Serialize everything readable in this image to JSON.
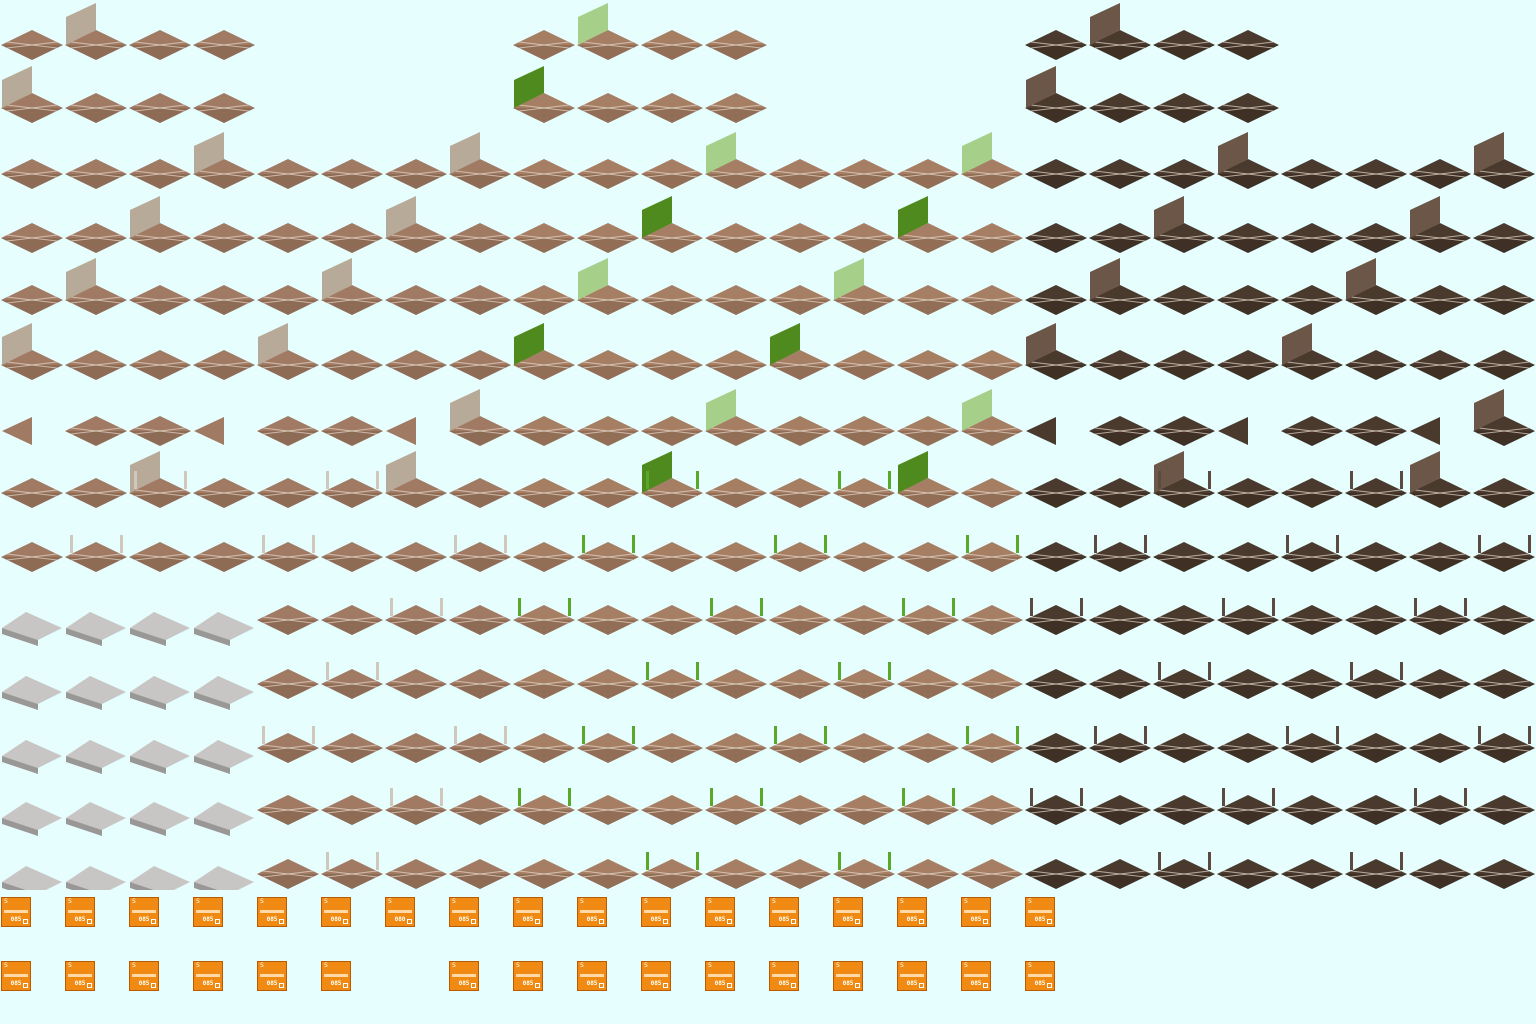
{
  "sheet": {
    "background": "#e6fefe",
    "panels": [
      {
        "name": "plain",
        "ground": "#a07a62",
        "groundDark": "#6e4f3c",
        "wall": "#b8aa98",
        "post": "#d0c8bc"
      },
      {
        "name": "grass",
        "ground": "#a57e63",
        "groundDark": "#6e4f3c",
        "wall": "#4e8a1e",
        "wallLight": "#a6cf8a",
        "post": "#5aa82a"
      },
      {
        "name": "dark",
        "ground": "#4a3a2e",
        "groundDark": "#2a1f18",
        "wall": "#6b5648",
        "post": "#5a4a40"
      }
    ]
  },
  "icons": {
    "accent": "#f08a12",
    "row1": [
      "085",
      "085",
      "085",
      "085",
      "085",
      "080",
      "080",
      "085",
      "085",
      "085",
      "085",
      "085",
      "085",
      "085",
      "085",
      "085",
      "085"
    ],
    "row2": [
      "085",
      "085",
      "085",
      "085",
      "085",
      "085",
      "",
      "085",
      "085",
      "085",
      "085",
      "085",
      "085",
      "085",
      "085",
      "085",
      "085"
    ]
  }
}
